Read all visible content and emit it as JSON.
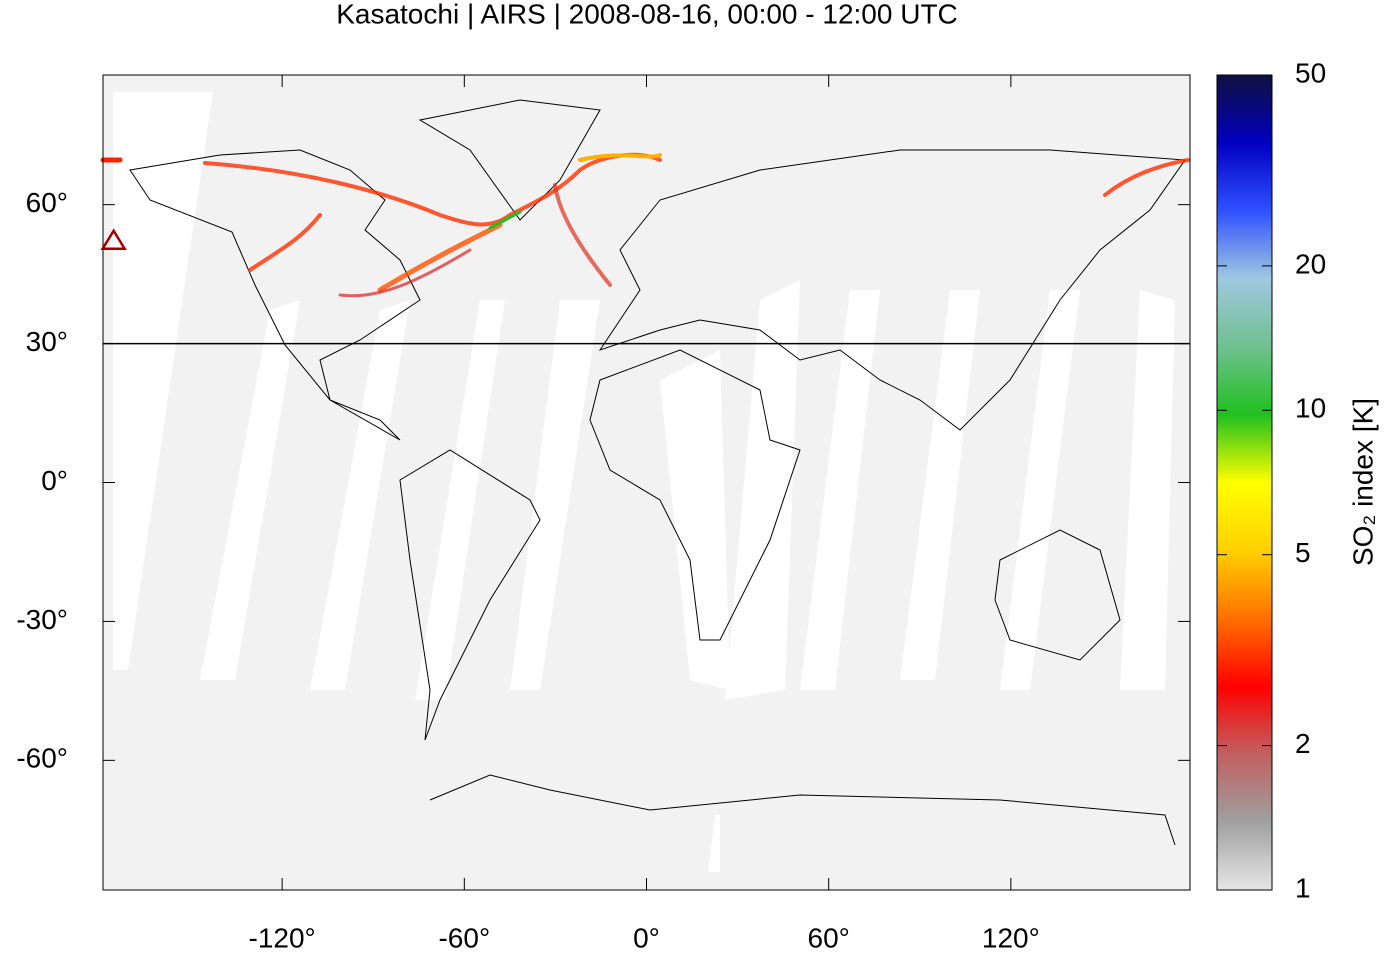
{
  "chart_data": {
    "type": "map",
    "title": "Kasatochi | AIRS | 2008-08-16, 00:00 - 12:00 UTC",
    "xlim": [
      -179,
      179
    ],
    "ylim": [
      -88,
      88
    ],
    "xticks": [
      {
        "value": -120,
        "label": "-120°"
      },
      {
        "value": -60,
        "label": "-60°"
      },
      {
        "value": 0,
        "label": "0°"
      },
      {
        "value": 60,
        "label": "60°"
      },
      {
        "value": 120,
        "label": "120°"
      }
    ],
    "yticks": [
      {
        "value": 60,
        "label": "60°"
      },
      {
        "value": 30,
        "label": "30°"
      },
      {
        "value": 0,
        "label": "0°"
      },
      {
        "value": -30,
        "label": "-30°"
      },
      {
        "value": -60,
        "label": "-60°"
      }
    ],
    "reference_line": {
      "y": 30
    },
    "volcano": {
      "x": -175.5,
      "y": 52.2,
      "color": "#a00000"
    },
    "colorbar": {
      "label": "SO₂ index [K]",
      "log_scale": true,
      "lim": [
        1,
        50
      ],
      "ticks": [
        1,
        2,
        5,
        10,
        20,
        50
      ],
      "colors": [
        "#e6e6e6",
        "#a0a0a0",
        "#c06060",
        "#ff0000",
        "#ff7000",
        "#ffd000",
        "#ffff00",
        "#20c020",
        "#70c090",
        "#a0c8e0",
        "#3050ff",
        "#0000c0",
        "#101040"
      ]
    }
  }
}
